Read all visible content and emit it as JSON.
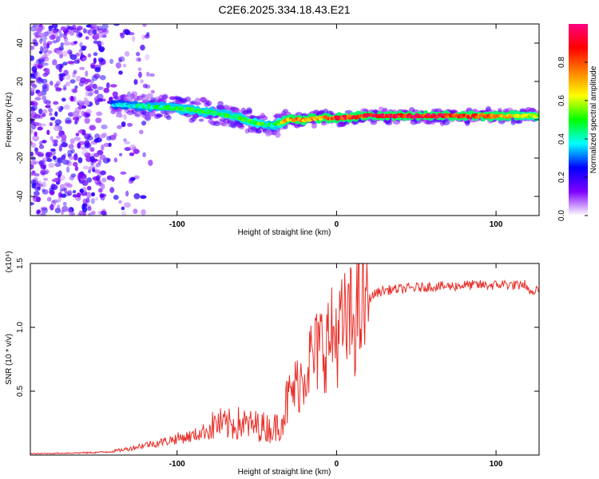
{
  "title": "C2E6.2025.334.18.43.E21",
  "chart_data": [
    {
      "type": "heatmap",
      "title": "C2E6.2025.334.18.43.E21",
      "xlabel": "Height of straight line (km)",
      "ylabel": "Frequency (Hz)",
      "xlim": [
        -192,
        127
      ],
      "ylim": [
        -50,
        50
      ],
      "x_ticks": [
        -100,
        0,
        100
      ],
      "y_ticks": [
        -40,
        -20,
        0,
        20,
        40
      ],
      "x_tick_labels": [
        "-100",
        "0",
        "100"
      ],
      "y_tick_labels": [
        "-40",
        "-20",
        "0",
        "20",
        "40"
      ],
      "colorbar": {
        "label": "Normalized spectral amplitude",
        "range": [
          0,
          1
        ],
        "ticks": [
          0.0,
          0.2,
          0.4,
          0.6,
          0.8
        ],
        "tick_labels": [
          "0.0",
          "0.2",
          "0.4",
          "0.6",
          "0.8"
        ],
        "colors": [
          "#ffffff",
          "#7f00ff",
          "#0000ff",
          "#00ffff",
          "#00ff00",
          "#ffff00",
          "#ff8000",
          "#ff0000",
          "#ff0080"
        ]
      },
      "ridge": {
        "x": [
          -140,
          -120,
          -100,
          -80,
          -60,
          -50,
          -40,
          -30,
          -20,
          -10,
          0,
          20,
          40,
          60,
          80,
          100,
          127
        ],
        "freq": [
          8,
          7,
          6,
          4,
          1,
          -2,
          -3,
          0,
          0,
          1,
          1,
          2,
          2,
          2,
          2,
          2,
          2
        ],
        "amplitude": [
          0.35,
          0.45,
          0.5,
          0.5,
          0.5,
          0.55,
          0.45,
          0.75,
          0.8,
          0.7,
          0.9,
          0.95,
          0.95,
          0.95,
          0.9,
          0.75,
          0.6
        ]
      },
      "noise_region_x": [
        -192,
        -115
      ]
    },
    {
      "type": "line",
      "xlabel": "Height of straight line (km)",
      "ylabel": "SNR (10 * v/v)",
      "scale_label": "(x10⁴)",
      "xlim": [
        -192,
        127
      ],
      "ylim": [
        0,
        15000
      ],
      "x_ticks": [
        -100,
        0,
        100
      ],
      "y_ticks": [
        5000,
        10000,
        15000
      ],
      "x_tick_labels": [
        "-100",
        "0",
        "100"
      ],
      "y_tick_labels": [
        "0.5",
        "1.0",
        "1.5"
      ],
      "series": [
        {
          "name": "SNR",
          "color": "#e8302a",
          "x": [
            -192,
            -170,
            -150,
            -140,
            -130,
            -120,
            -110,
            -100,
            -90,
            -80,
            -75,
            -70,
            -65,
            -60,
            -55,
            -50,
            -45,
            -40,
            -35,
            -30,
            -25,
            -20,
            -18,
            -15,
            -10,
            -5,
            0,
            5,
            10,
            15,
            20,
            25,
            30,
            40,
            50,
            60,
            70,
            80,
            90,
            100,
            105,
            110,
            115,
            118,
            120,
            127
          ],
          "y": [
            100,
            150,
            200,
            300,
            500,
            800,
            1000,
            1300,
            1500,
            2000,
            2500,
            2300,
            2400,
            2500,
            2300,
            2300,
            2200,
            2000,
            2600,
            4500,
            5500,
            6500,
            7500,
            7500,
            8500,
            9000,
            9500,
            10000,
            10500,
            11500,
            12200,
            12700,
            12900,
            13000,
            13100,
            13200,
            13200,
            13300,
            13300,
            13300,
            13400,
            13300,
            13300,
            13500,
            12800,
            13100
          ]
        }
      ]
    }
  ]
}
